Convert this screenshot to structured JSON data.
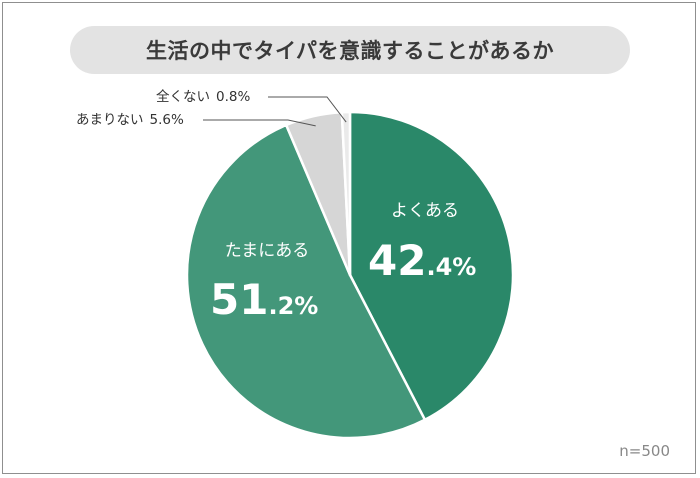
{
  "chart_data": {
    "type": "pie",
    "title": "生活の中でタイパを意識することがあるか",
    "note": "n=500",
    "slices": [
      {
        "label": "よくある",
        "value": 42.4,
        "display_main": "42",
        "display_dec": ".4%",
        "color": "#2a8869"
      },
      {
        "label": "たまにある",
        "value": 51.2,
        "display_main": "51",
        "display_dec": ".2%",
        "color": "#43977a"
      },
      {
        "label": "あまりない",
        "value": 5.6,
        "display": "5.6%",
        "color": "#d6d6d6"
      },
      {
        "label": "全くない",
        "value": 0.8,
        "display": "0.8%",
        "color": "#eaeaea"
      }
    ]
  }
}
